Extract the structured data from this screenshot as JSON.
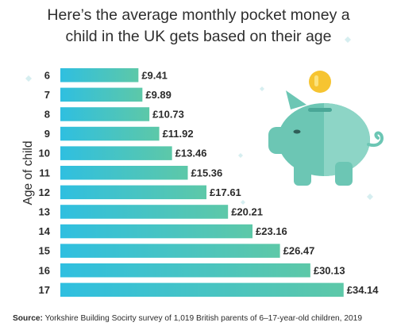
{
  "title_lines": [
    "Here’s the average monthly pocket money a",
    "child in the UK gets based on their age"
  ],
  "source": {
    "label": "Source:",
    "text": "Yorkshire Building Socirty survey of 1,019 British parents of 6–17-year-old children, 2019"
  },
  "colors": {
    "bar_gradient_start": "#2fbfe0",
    "bar_gradient_end": "#5dc8a8",
    "pig_body": "#6cc6b4",
    "pig_shade": "#8dd5c6",
    "coin": "#f6c431",
    "sparkle": "#d6eef0"
  },
  "icons": [
    "piggy-bank-icon",
    "coin-icon"
  ],
  "chart_data": {
    "type": "bar",
    "orientation": "horizontal",
    "title": "Here’s the average monthly pocket money a child in the UK gets based on their age",
    "ylabel": "Age of child",
    "xlabel": "",
    "categories": [
      "6",
      "7",
      "8",
      "9",
      "10",
      "11",
      "12",
      "13",
      "14",
      "15",
      "16",
      "17"
    ],
    "values": [
      9.41,
      9.89,
      10.73,
      11.92,
      13.46,
      15.36,
      17.61,
      20.21,
      23.16,
      26.47,
      30.13,
      34.14
    ],
    "value_labels": [
      "£9.41",
      "£9.89",
      "£10.73",
      "£11.92",
      "£13.46",
      "£15.36",
      "£17.61",
      "£20.21",
      "£23.16",
      "£26.47",
      "£30.13",
      "£34.14"
    ],
    "grid": false,
    "legend": "none"
  }
}
